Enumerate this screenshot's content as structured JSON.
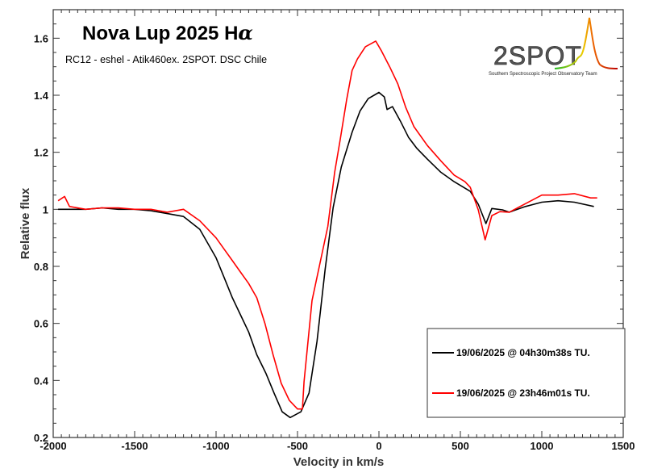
{
  "chart_data": {
    "type": "line",
    "title": "Nova Lup 2025 H",
    "title_symbol": "α",
    "subtitle": "RC12 - eshel - Atik460ex. 2SPOT. DSC Chile",
    "xlabel": "Velocity in km/s",
    "ylabel": "Relative flux",
    "xlim": [
      -2000,
      1500
    ],
    "ylim": [
      0.2,
      1.7
    ],
    "xticks": [
      -2000,
      -1500,
      -1000,
      -500,
      0,
      500,
      1000,
      1500
    ],
    "yticks": [
      0.2,
      0.4,
      0.6,
      0.8,
      1,
      1.2,
      1.4,
      1.6
    ],
    "xtick_labels": [
      "-2000",
      "-1500",
      "-1000",
      "-500",
      "0",
      "500",
      "1000",
      "1500"
    ],
    "ytick_labels": [
      "0.2",
      "0.4",
      "0.6",
      "0.8",
      "1",
      "1.2",
      "1.4",
      "1.6"
    ],
    "grid": false,
    "legend_placement": "bottom-right",
    "series": [
      {
        "name": "19/06/2025 @ 04h30m38s TU.",
        "color": "#000000",
        "x": [
          -1970,
          -1900,
          -1800,
          -1700,
          -1600,
          -1500,
          -1400,
          -1300,
          -1200,
          -1100,
          -1000,
          -950,
          -900,
          -850,
          -800,
          -750,
          -693,
          -644,
          -594,
          -545,
          -479,
          -429,
          -380,
          -330,
          -281,
          -231,
          -165,
          -116,
          -66,
          0,
          33,
          50,
          83,
          132,
          182,
          231,
          297,
          380,
          462,
          561,
          610,
          657,
          693,
          759,
          800,
          900,
          1000,
          1100,
          1200,
          1320
        ],
        "y": [
          1.0,
          1.0,
          1.0,
          1.005,
          1.0,
          1.0,
          0.995,
          0.985,
          0.975,
          0.93,
          0.83,
          0.76,
          0.69,
          0.63,
          0.57,
          0.49,
          0.424,
          0.356,
          0.29,
          0.27,
          0.29,
          0.356,
          0.537,
          0.79,
          1.006,
          1.148,
          1.27,
          1.345,
          1.388,
          1.41,
          1.394,
          1.35,
          1.36,
          1.309,
          1.252,
          1.215,
          1.176,
          1.13,
          1.097,
          1.063,
          1.018,
          0.95,
          1.003,
          0.998,
          0.99,
          1.01,
          1.025,
          1.03,
          1.025,
          1.01
        ]
      },
      {
        "name": "19/06/2025 @ 23h46m01s TU.",
        "color": "#ff0000",
        "x": [
          -1970,
          -1930,
          -1900,
          -1800,
          -1700,
          -1600,
          -1500,
          -1400,
          -1300,
          -1200,
          -1100,
          -1000,
          -950,
          -900,
          -850,
          -800,
          -750,
          -700,
          -650,
          -600,
          -550,
          -500,
          -470,
          -460,
          -411,
          -314,
          -272,
          -239,
          -198,
          -165,
          -132,
          -83,
          -20,
          16,
          66,
          116,
          165,
          215,
          297,
          380,
          462,
          528,
          561,
          610,
          652,
          693,
          743,
          800,
          900,
          1000,
          1100,
          1200,
          1300,
          1340
        ],
        "y": [
          1.03,
          1.045,
          1.01,
          1.0,
          1.005,
          1.005,
          1.0,
          1.0,
          0.99,
          1.0,
          0.96,
          0.9,
          0.86,
          0.82,
          0.78,
          0.74,
          0.69,
          0.6,
          0.49,
          0.39,
          0.33,
          0.3,
          0.3,
          0.395,
          0.68,
          0.94,
          1.13,
          1.24,
          1.385,
          1.487,
          1.527,
          1.57,
          1.59,
          1.555,
          1.5,
          1.44,
          1.357,
          1.29,
          1.224,
          1.17,
          1.12,
          1.097,
          1.077,
          0.998,
          0.893,
          0.978,
          0.992,
          0.99,
          1.02,
          1.05,
          1.05,
          1.055,
          1.04,
          1.04
        ]
      }
    ]
  },
  "logo": {
    "text": "2SPOT",
    "tagline": "Southern Spectroscopic Project Observatory Team"
  }
}
